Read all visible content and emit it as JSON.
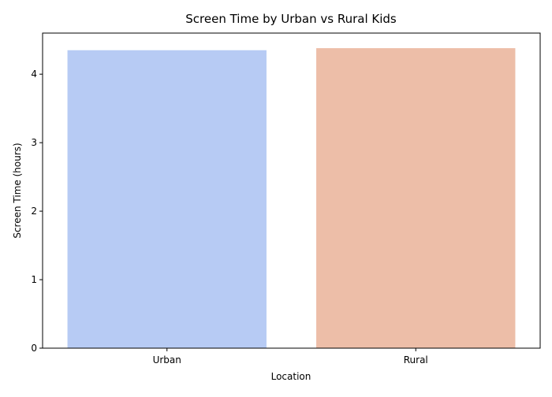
{
  "chart_data": {
    "type": "bar",
    "title": "Screen Time by Urban vs Rural Kids",
    "xlabel": "Location",
    "ylabel": "Screen Time (hours)",
    "categories": [
      "Urban",
      "Rural"
    ],
    "values": [
      4.35,
      4.38
    ],
    "colors": [
      "#b7cbf4",
      "#edbea8"
    ],
    "ylim": [
      0,
      4.6
    ],
    "yticks": [
      0,
      1,
      2,
      3,
      4
    ],
    "grid": false,
    "legend": "none"
  }
}
